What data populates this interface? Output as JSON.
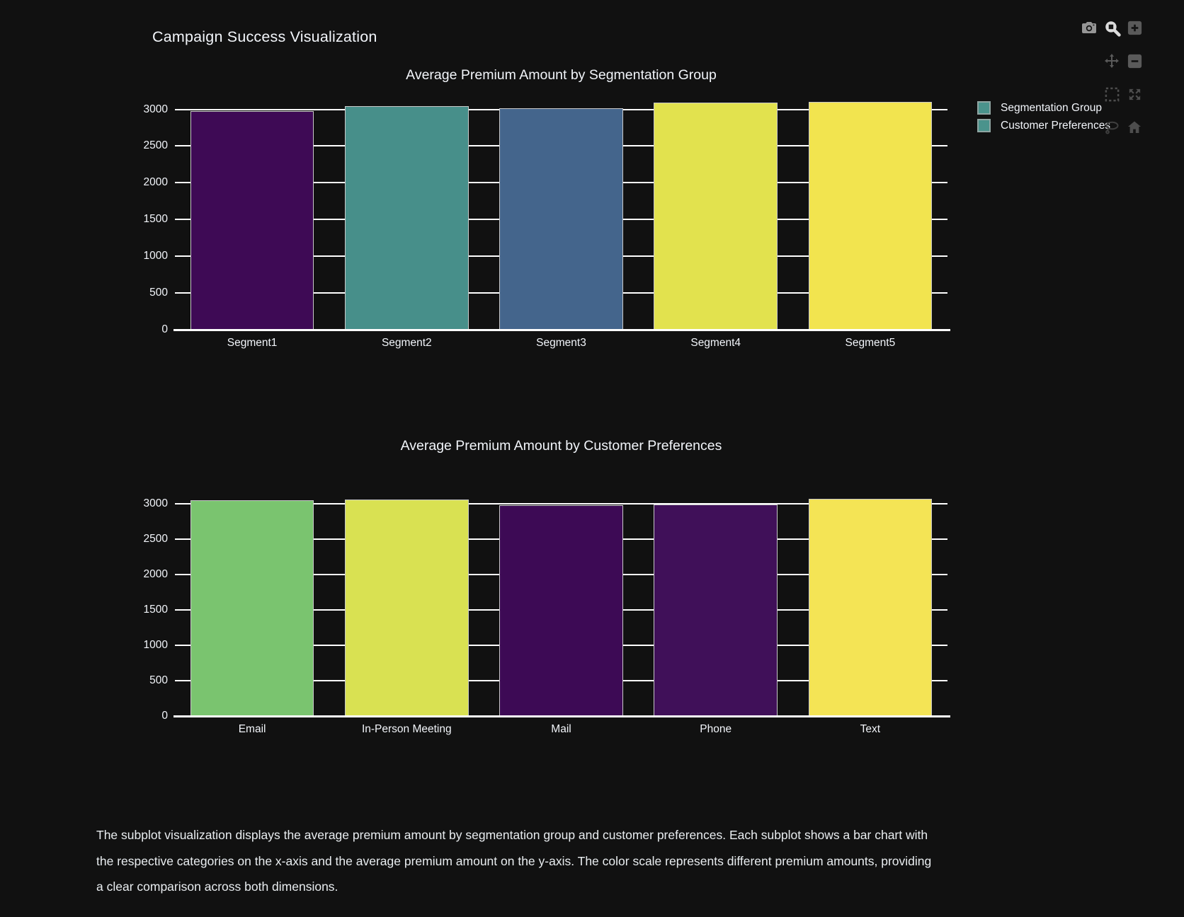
{
  "page": {
    "title": "Campaign Success Visualization",
    "background": "#111111",
    "text_color": "#f2f5fa"
  },
  "legend": {
    "position": "top-right",
    "items": [
      {
        "label": "Segmentation Group",
        "color": "#4a938c"
      },
      {
        "label": "Customer Preferences",
        "color": "#4a938c"
      }
    ]
  },
  "modebar": {
    "icons": [
      "camera-download",
      "zoom-magnifier",
      "zoom-in",
      "pan",
      "zoom-out",
      "box-select",
      "autoscale",
      "lasso-select",
      "reset-axes-home"
    ]
  },
  "chart_data": [
    {
      "type": "bar",
      "title": "Average Premium Amount by Segmentation Group",
      "categories": [
        "Segment1",
        "Segment2",
        "Segment3",
        "Segment4",
        "Segment5"
      ],
      "values": [
        2980,
        3040,
        3020,
        3090,
        3100
      ],
      "bar_colors": [
        "#3e0a55",
        "#478f8a",
        "#44658c",
        "#e2e24e",
        "#f2e44f"
      ],
      "xlabel": "",
      "ylabel": "",
      "ylim": [
        0,
        3150
      ],
      "yticks": [
        0,
        500,
        1000,
        1500,
        2000,
        2500,
        3000
      ],
      "grid": true,
      "gridcolor": "#ffffff",
      "bar_border_color": "#c9c9c9",
      "bargap": 0.2
    },
    {
      "type": "bar",
      "title": "Average Premium Amount by Customer Preferences",
      "categories": [
        "Email",
        "In-Person Meeting",
        "Mail",
        "Phone",
        "Text"
      ],
      "values": [
        3050,
        3065,
        2985,
        2990,
        3070
      ],
      "bar_colors": [
        "#7ac46f",
        "#d9e152",
        "#3d0a55",
        "#401059",
        "#f4e455"
      ],
      "xlabel": "",
      "ylabel": "",
      "ylim": [
        0,
        3150
      ],
      "yticks": [
        0,
        500,
        1000,
        1500,
        2000,
        2500,
        3000
      ],
      "grid": true,
      "gridcolor": "#ffffff",
      "bar_border_color": "#c9c9c9",
      "bargap": 0.2
    }
  ],
  "caption": {
    "lines": [
      "The subplot visualization displays the average premium amount by segmentation group and customer preferences. Each subplot shows a bar chart with",
      "the respective categories on the x-axis and the average premium amount on the y-axis. The color scale represents different premium amounts, providing",
      "a clear comparison across both dimensions."
    ]
  }
}
